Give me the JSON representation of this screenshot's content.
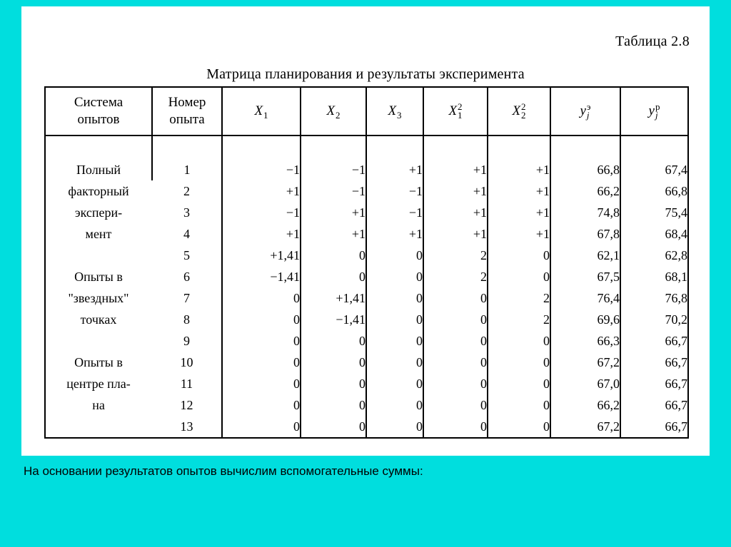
{
  "slide": {
    "table_label": "Таблица 2.8",
    "table_title": "Матрица планирования и результаты эксперимента",
    "footer": "На основании результатов опытов вычислим вспомогательные суммы:"
  },
  "table": {
    "cols": {
      "system": {
        "line1": "Система",
        "line2": "опытов"
      },
      "number": {
        "line1": "Номер",
        "line2": "опыта"
      },
      "x1": {
        "base": "X",
        "sub": "1",
        "sup": ""
      },
      "x2": {
        "base": "X",
        "sub": "2",
        "sup": ""
      },
      "x3": {
        "base": "X",
        "sub": "3",
        "sup": ""
      },
      "x1sq": {
        "base": "X",
        "sub": "1",
        "sup": "2"
      },
      "x2sq": {
        "base": "X",
        "sub": "2",
        "sup": "2"
      },
      "ye": {
        "base": "y",
        "sub": "j",
        "sup": "э"
      },
      "yp": {
        "base": "y",
        "sub": "j",
        "sup": "р"
      }
    },
    "groups": [
      {
        "lines": [
          "Полный",
          "факторный",
          "экспери-",
          "мент"
        ]
      },
      {
        "lines": [
          "Опыты в",
          "\"звездных\"",
          "точках"
        ]
      },
      {
        "lines": [
          "Опыты в",
          "центре пла-",
          "на"
        ]
      }
    ],
    "rows": [
      {
        "num": "1",
        "x1": "−1",
        "x2": "−1",
        "x3": "+1",
        "x1sq": "+1",
        "x2sq": "+1",
        "ye": "66,8",
        "yp": "67,4"
      },
      {
        "num": "2",
        "x1": "+1",
        "x2": "−1",
        "x3": "−1",
        "x1sq": "+1",
        "x2sq": "+1",
        "ye": "66,2",
        "yp": "66,8"
      },
      {
        "num": "3",
        "x1": "−1",
        "x2": "+1",
        "x3": "−1",
        "x1sq": "+1",
        "x2sq": "+1",
        "ye": "74,8",
        "yp": "75,4"
      },
      {
        "num": "4",
        "x1": "+1",
        "x2": "+1",
        "x3": "+1",
        "x1sq": "+1",
        "x2sq": "+1",
        "ye": "67,8",
        "yp": "68,4"
      },
      {
        "num": "5",
        "x1": "+1,41",
        "x2": "0",
        "x3": "0",
        "x1sq": "2",
        "x2sq": "0",
        "ye": "62,1",
        "yp": "62,8"
      },
      {
        "num": "6",
        "x1": "−1,41",
        "x2": "0",
        "x3": "0",
        "x1sq": "2",
        "x2sq": "0",
        "ye": "67,5",
        "yp": "68,1"
      },
      {
        "num": "7",
        "x1": "0",
        "x2": "+1,41",
        "x3": "0",
        "x1sq": "0",
        "x2sq": "2",
        "ye": "76,4",
        "yp": "76,8"
      },
      {
        "num": "8",
        "x1": "0",
        "x2": "−1,41",
        "x3": "0",
        "x1sq": "0",
        "x2sq": "2",
        "ye": "69,6",
        "yp": "70,2"
      },
      {
        "num": "9",
        "x1": "0",
        "x2": "0",
        "x3": "0",
        "x1sq": "0",
        "x2sq": "0",
        "ye": "66,3",
        "yp": "66,7"
      },
      {
        "num": "10",
        "x1": "0",
        "x2": "0",
        "x3": "0",
        "x1sq": "0",
        "x2sq": "0",
        "ye": "67,2",
        "yp": "66,7"
      },
      {
        "num": "11",
        "x1": "0",
        "x2": "0",
        "x3": "0",
        "x1sq": "0",
        "x2sq": "0",
        "ye": "67,0",
        "yp": "66,7"
      },
      {
        "num": "12",
        "x1": "0",
        "x2": "0",
        "x3": "0",
        "x1sq": "0",
        "x2sq": "0",
        "ye": "66,2",
        "yp": "66,7"
      },
      {
        "num": "13",
        "x1": "0",
        "x2": "0",
        "x3": "0",
        "x1sq": "0",
        "x2sq": "0",
        "ye": "67,2",
        "yp": "66,7"
      }
    ]
  }
}
